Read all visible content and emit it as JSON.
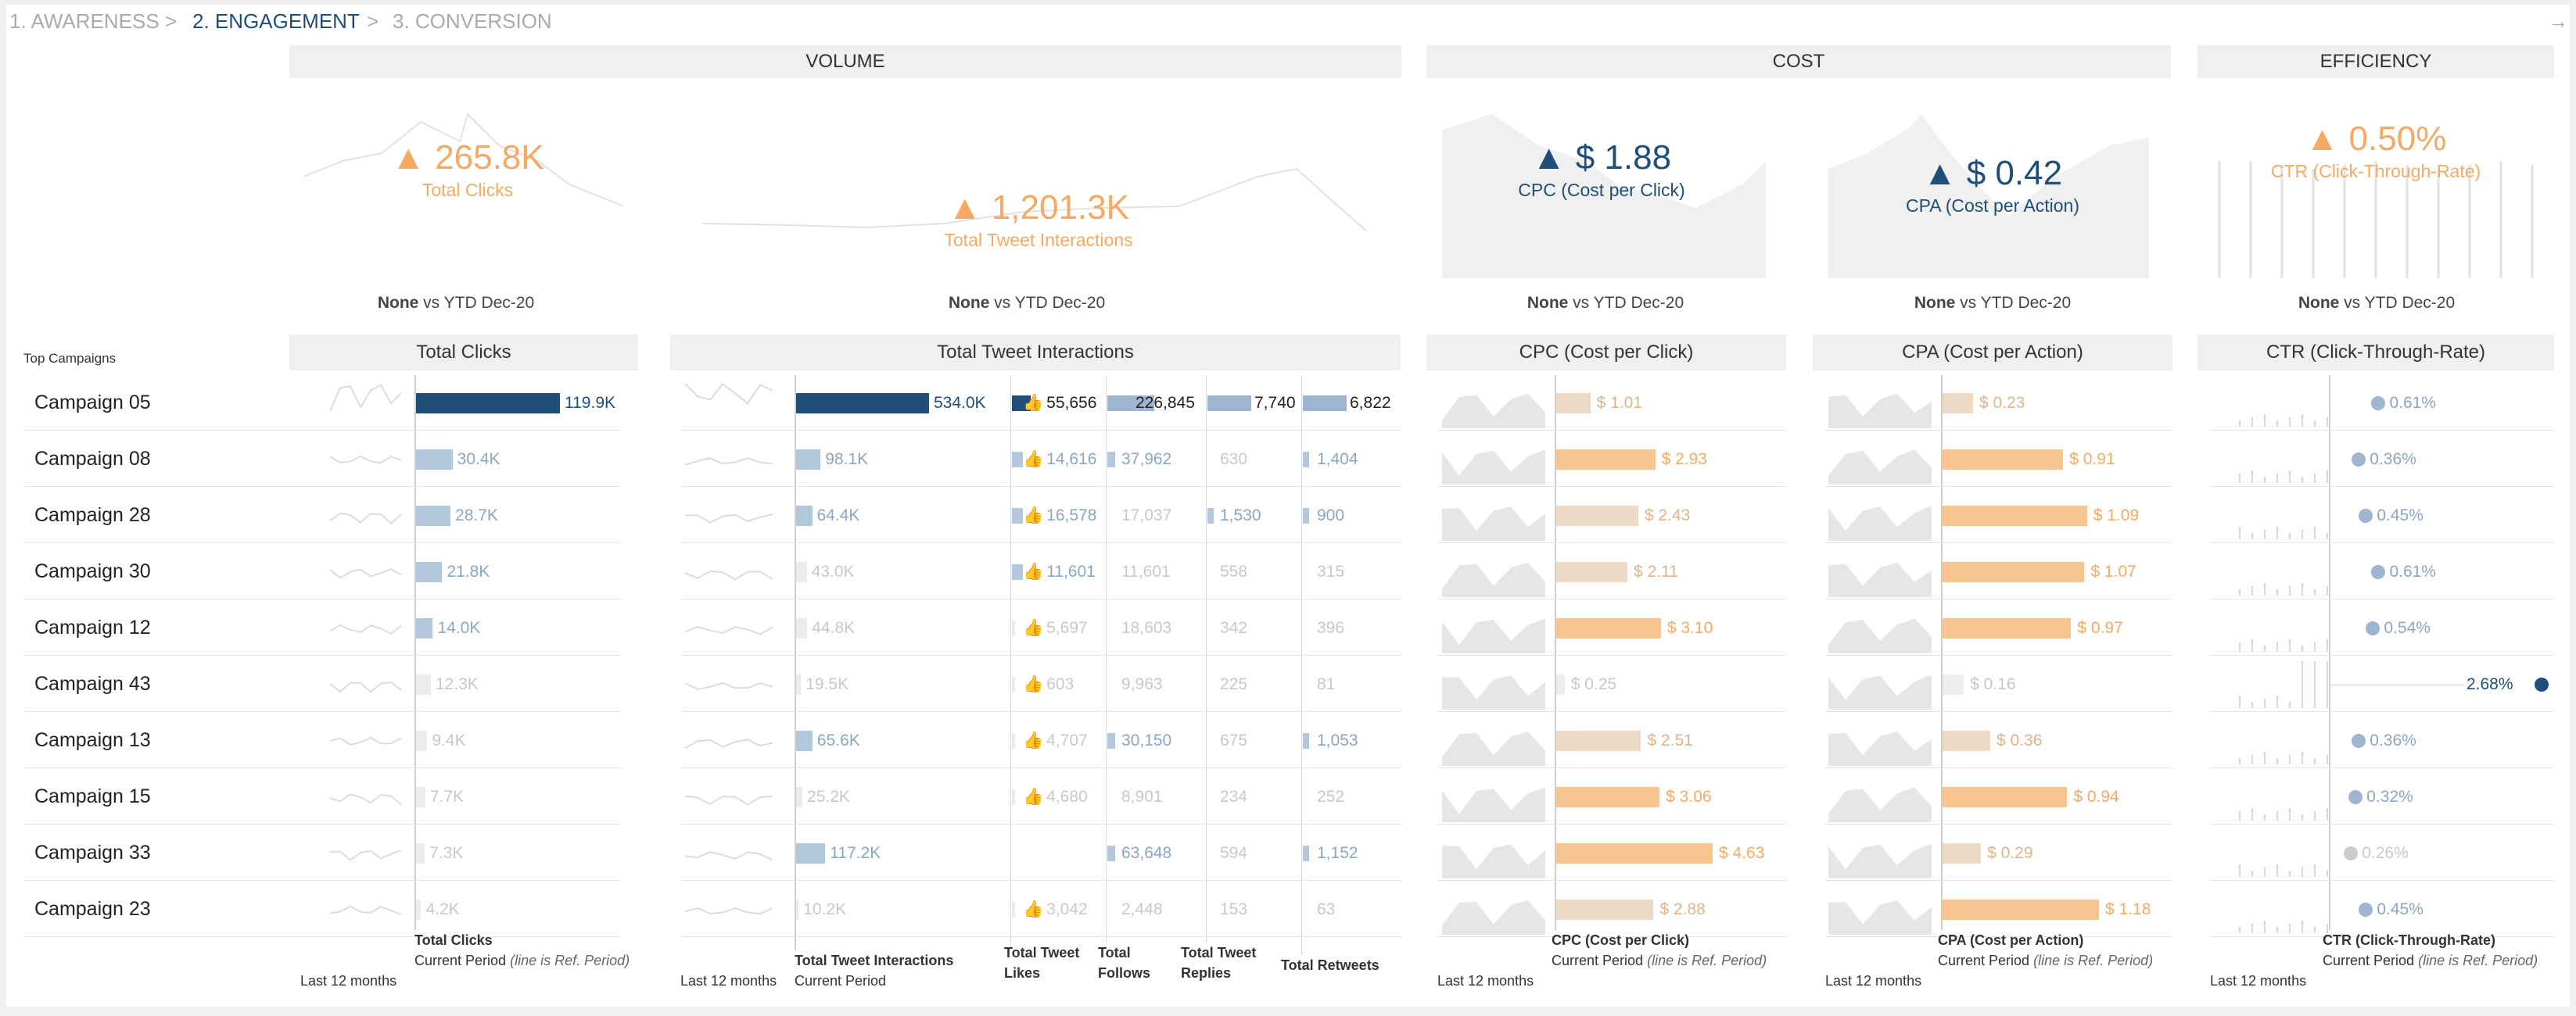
{
  "nav": {
    "steps": [
      "1. AWARENESS",
      "2. ENGAGEMENT",
      "3. CONVERSION"
    ],
    "sep": ">",
    "active_index": 1,
    "arrow_icon": "arrow-right-icon"
  },
  "sections": {
    "volume": "VOLUME",
    "cost": "COST",
    "efficiency": "EFFICIENCY"
  },
  "kpis": [
    {
      "value": "265.8K",
      "label": "Total Clicks",
      "comparison_none": "None",
      "comparison_rest": " vs YTD Dec-20",
      "color": "#f5a962"
    },
    {
      "value": "1,201.3K",
      "label": "Total Tweet Interactions",
      "comparison_none": "None",
      "comparison_rest": " vs YTD Dec-20",
      "color": "#f5a962"
    },
    {
      "value": "$ 1.88",
      "label": "CPC (Cost per Click)",
      "comparison_none": "None",
      "comparison_rest": " vs YTD Dec-20",
      "color": "#1f4e79"
    },
    {
      "value": "$ 0.42",
      "label": "CPA (Cost per Action)",
      "comparison_none": "None",
      "comparison_rest": " vs YTD Dec-20",
      "color": "#1f4e79"
    },
    {
      "value": "0.50%",
      "label": "CTR (Click-Through-Rate)",
      "comparison_none": "None",
      "comparison_rest": " vs YTD Dec-20",
      "color": "#f5a962"
    }
  ],
  "table": {
    "top_label": "Top Campaigns",
    "headers": {
      "clicks": "Total Clicks",
      "interactions": "Total Tweet Interactions",
      "cpc": "CPC (Cost per Click)",
      "cpa": "CPA (Cost per Action)",
      "ctr": "CTR (Click-Through-Rate)"
    },
    "like_icon": "👍",
    "campaigns": [
      {
        "name": "Campaign 05",
        "clicks": 119.9,
        "clicks_label": "119.9K",
        "inter": 534.0,
        "inter_label": "534.0K",
        "likes": "55,656",
        "follows": "226,845",
        "replies": "7,740",
        "retweets": "6,822",
        "cpc": 1.01,
        "cpc_label": "$ 1.01",
        "cpa": 0.23,
        "cpa_label": "$ 0.23",
        "ctr": 0.61,
        "ctr_label": "0.61%"
      },
      {
        "name": "Campaign 08",
        "clicks": 30.4,
        "clicks_label": "30.4K",
        "inter": 98.1,
        "inter_label": "98.1K",
        "likes": "14,616",
        "follows": "37,962",
        "replies": "630",
        "retweets": "1,404",
        "cpc": 2.93,
        "cpc_label": "$ 2.93",
        "cpa": 0.91,
        "cpa_label": "$ 0.91",
        "ctr": 0.36,
        "ctr_label": "0.36%"
      },
      {
        "name": "Campaign 28",
        "clicks": 28.7,
        "clicks_label": "28.7K",
        "inter": 64.4,
        "inter_label": "64.4K",
        "likes": "16,578",
        "follows": "17,037",
        "replies": "1,530",
        "retweets": "900",
        "cpc": 2.43,
        "cpc_label": "$ 2.43",
        "cpa": 1.09,
        "cpa_label": "$ 1.09",
        "ctr": 0.45,
        "ctr_label": "0.45%"
      },
      {
        "name": "Campaign 30",
        "clicks": 21.8,
        "clicks_label": "21.8K",
        "inter": 43.0,
        "inter_label": "43.0K",
        "likes": "11,601",
        "follows": "11,601",
        "replies": "558",
        "retweets": "315",
        "cpc": 2.11,
        "cpc_label": "$ 2.11",
        "cpa": 1.07,
        "cpa_label": "$ 1.07",
        "ctr": 0.61,
        "ctr_label": "0.61%"
      },
      {
        "name": "Campaign 12",
        "clicks": 14.0,
        "clicks_label": "14.0K",
        "inter": 44.8,
        "inter_label": "44.8K",
        "likes": "5,697",
        "follows": "18,603",
        "replies": "342",
        "retweets": "396",
        "cpc": 3.1,
        "cpc_label": "$ 3.10",
        "cpa": 0.97,
        "cpa_label": "$ 0.97",
        "ctr": 0.54,
        "ctr_label": "0.54%"
      },
      {
        "name": "Campaign 43",
        "clicks": 12.3,
        "clicks_label": "12.3K",
        "inter": 19.5,
        "inter_label": "19.5K",
        "likes": "603",
        "follows": "9,963",
        "replies": "225",
        "retweets": "81",
        "cpc": 0.25,
        "cpc_label": "$ 0.25",
        "cpa": 0.16,
        "cpa_label": "$ 0.16",
        "ctr": 2.68,
        "ctr_label": "2.68%"
      },
      {
        "name": "Campaign 13",
        "clicks": 9.4,
        "clicks_label": "9.4K",
        "inter": 65.6,
        "inter_label": "65.6K",
        "likes": "4,707",
        "follows": "30,150",
        "replies": "675",
        "retweets": "1,053",
        "cpc": 2.51,
        "cpc_label": "$ 2.51",
        "cpa": 0.36,
        "cpa_label": "$ 0.36",
        "ctr": 0.36,
        "ctr_label": "0.36%"
      },
      {
        "name": "Campaign 15",
        "clicks": 7.7,
        "clicks_label": "7.7K",
        "inter": 25.2,
        "inter_label": "25.2K",
        "likes": "4,680",
        "follows": "8,901",
        "replies": "234",
        "retweets": "252",
        "cpc": 3.06,
        "cpc_label": "$ 3.06",
        "cpa": 0.94,
        "cpa_label": "$ 0.94",
        "ctr": 0.32,
        "ctr_label": "0.32%"
      },
      {
        "name": "Campaign 33",
        "clicks": 7.3,
        "clicks_label": "7.3K",
        "inter": 117.2,
        "inter_label": "117.2K",
        "likes": "",
        "follows": "63,648",
        "replies": "594",
        "retweets": "1,152",
        "cpc": 4.63,
        "cpc_label": "$ 4.63",
        "cpa": 0.29,
        "cpa_label": "$ 0.29",
        "ctr": 0.26,
        "ctr_label": "0.26%"
      },
      {
        "name": "Campaign 23",
        "clicks": 4.2,
        "clicks_label": "4.2K",
        "inter": 10.2,
        "inter_label": "10.2K",
        "likes": "3,042",
        "follows": "2,448",
        "replies": "153",
        "retweets": "63",
        "cpc": 2.88,
        "cpc_label": "$ 2.88",
        "cpa": 1.18,
        "cpa_label": "$ 1.18",
        "ctr": 0.45,
        "ctr_label": "0.45%"
      }
    ]
  },
  "footers": {
    "last12": "Last 12 months",
    "current_period": "Current Period",
    "ref_note": "(line is Ref. Period)",
    "clicks": "Total Clicks",
    "interactions": "Total Tweet Interactions",
    "likes": "Total Tweet Likes",
    "follows": "Total Follows",
    "replies": "Total Tweet Replies",
    "retweets": "Total Retweets",
    "cpc": "CPC (Cost per Click)",
    "cpa": "CPA (Cost per Action)",
    "ctr": "CTR (Click-Through-Rate)"
  },
  "colors": {
    "navy": "#1f4e79",
    "lightblue": "#b3c8dc",
    "midblue": "#9db5cf",
    "grayfill": "#e8e8e8",
    "orange": "#f5a962",
    "orangebar": "#f8c48f",
    "tan": "#e6cbb0",
    "tanbar": "#ecd9c6"
  }
}
